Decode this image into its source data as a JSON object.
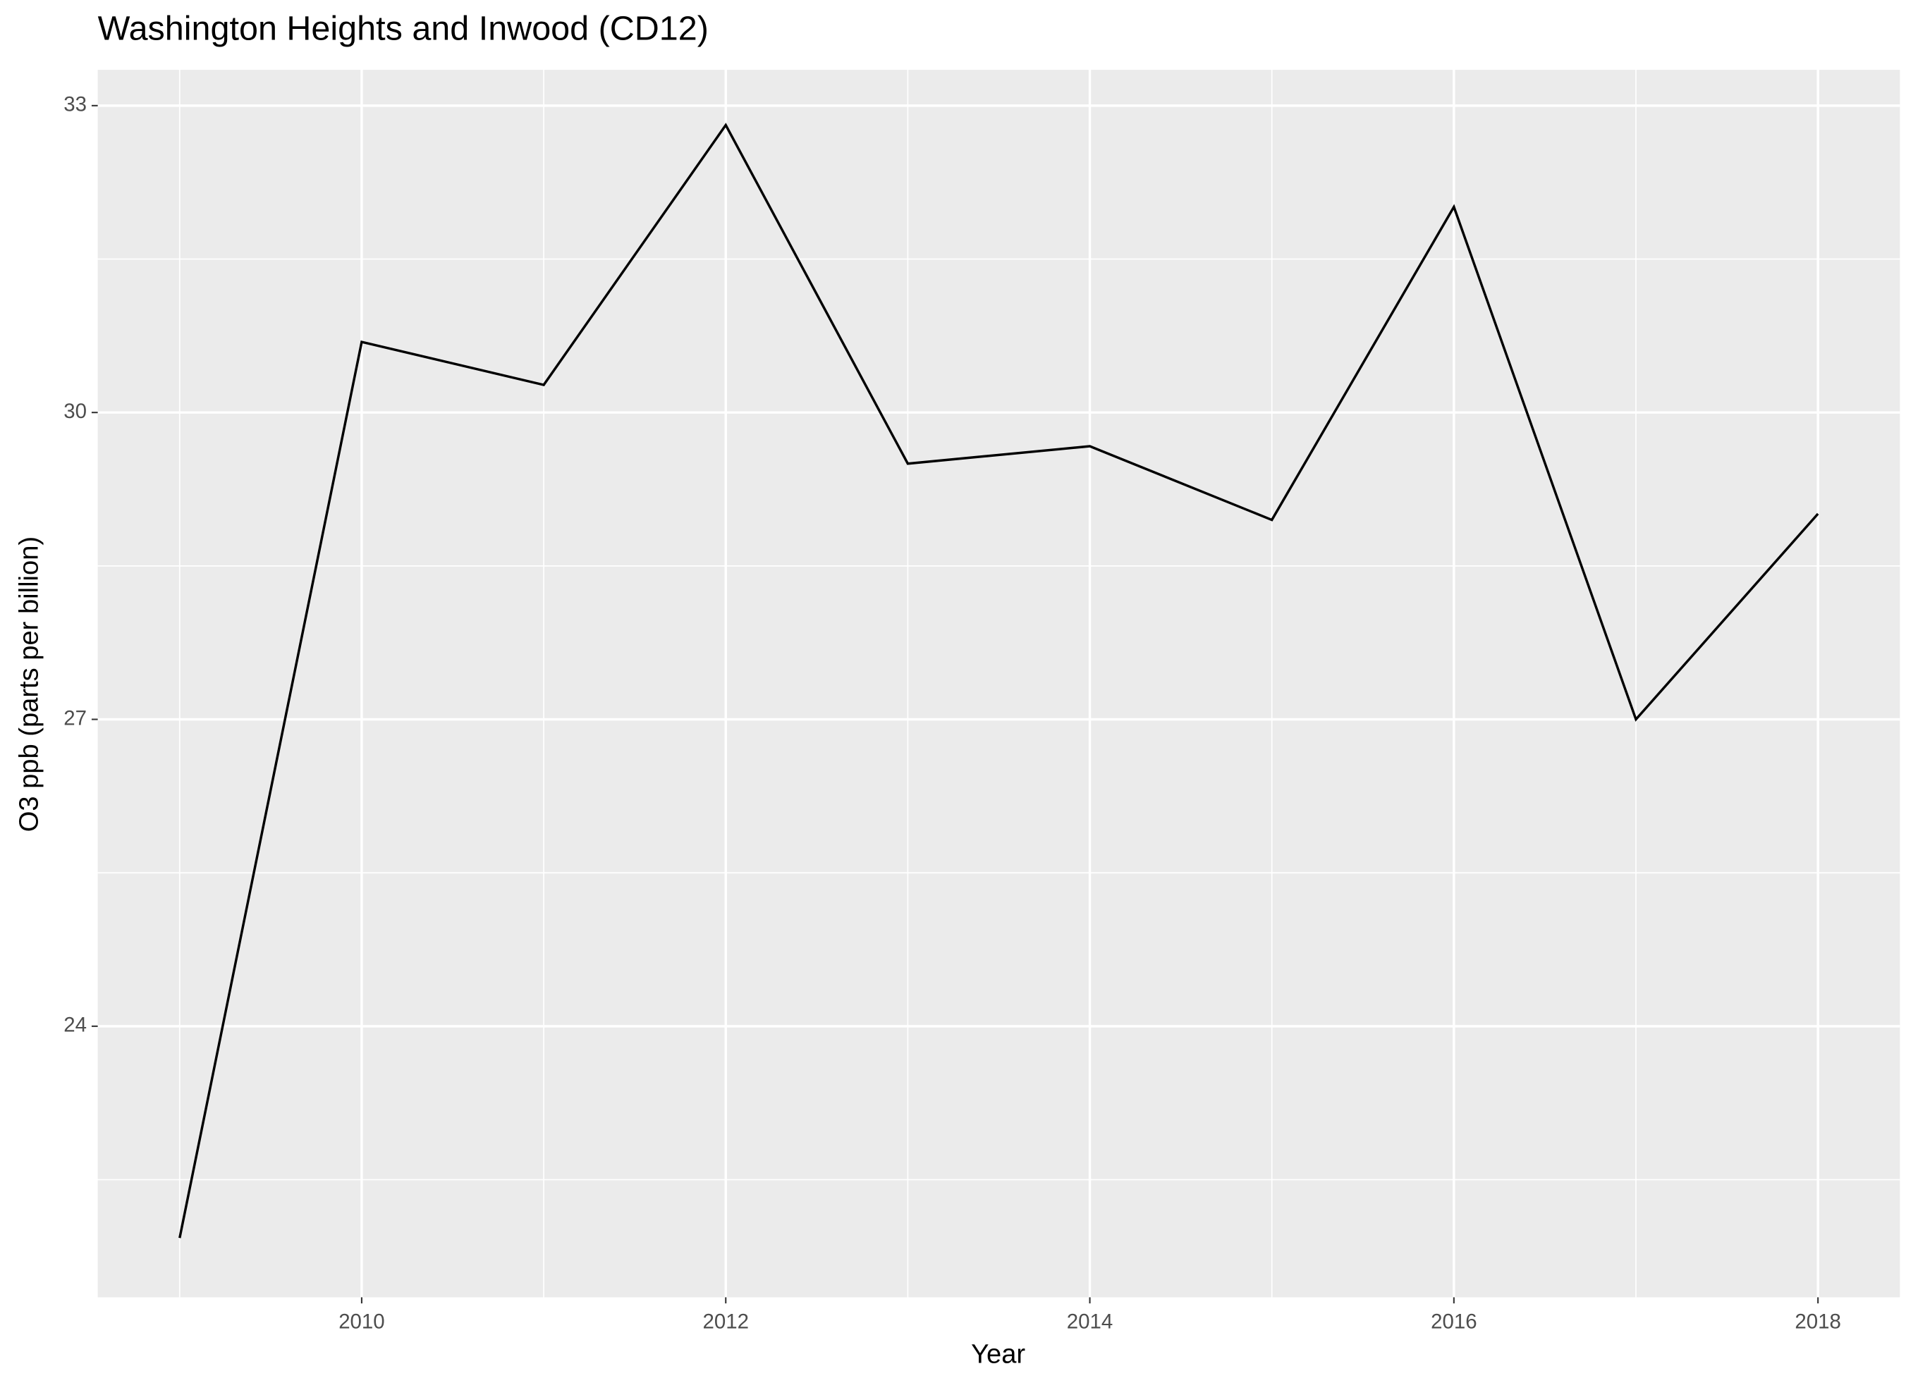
{
  "chart_data": {
    "type": "line",
    "title": "Washington Heights and Inwood (CD12)",
    "x_label": "Year",
    "y_label": "O3 ppb (parts per billion)",
    "x": [
      2009,
      2010,
      2011,
      2012,
      2013,
      2014,
      2015,
      2016,
      2017,
      2018
    ],
    "series": [
      {
        "name": "O3",
        "color": "#000000",
        "values": [
          21.93,
          30.69,
          30.27,
          32.81,
          29.5,
          29.67,
          28.95,
          32.01,
          27.0,
          29.01
        ]
      }
    ],
    "xlim": [
      2008.55,
      2018.45
    ],
    "xticks": [
      2010,
      2012,
      2014,
      2016,
      2018
    ],
    "x_minor_ticks": [
      2009,
      2011,
      2013,
      2015,
      2017
    ],
    "ylim": [
      21.35,
      33.35
    ],
    "yticks": [
      24,
      27,
      30,
      33
    ],
    "y_minor_ticks": [
      22.5,
      25.5,
      28.5,
      31.5
    ],
    "grid": true
  }
}
